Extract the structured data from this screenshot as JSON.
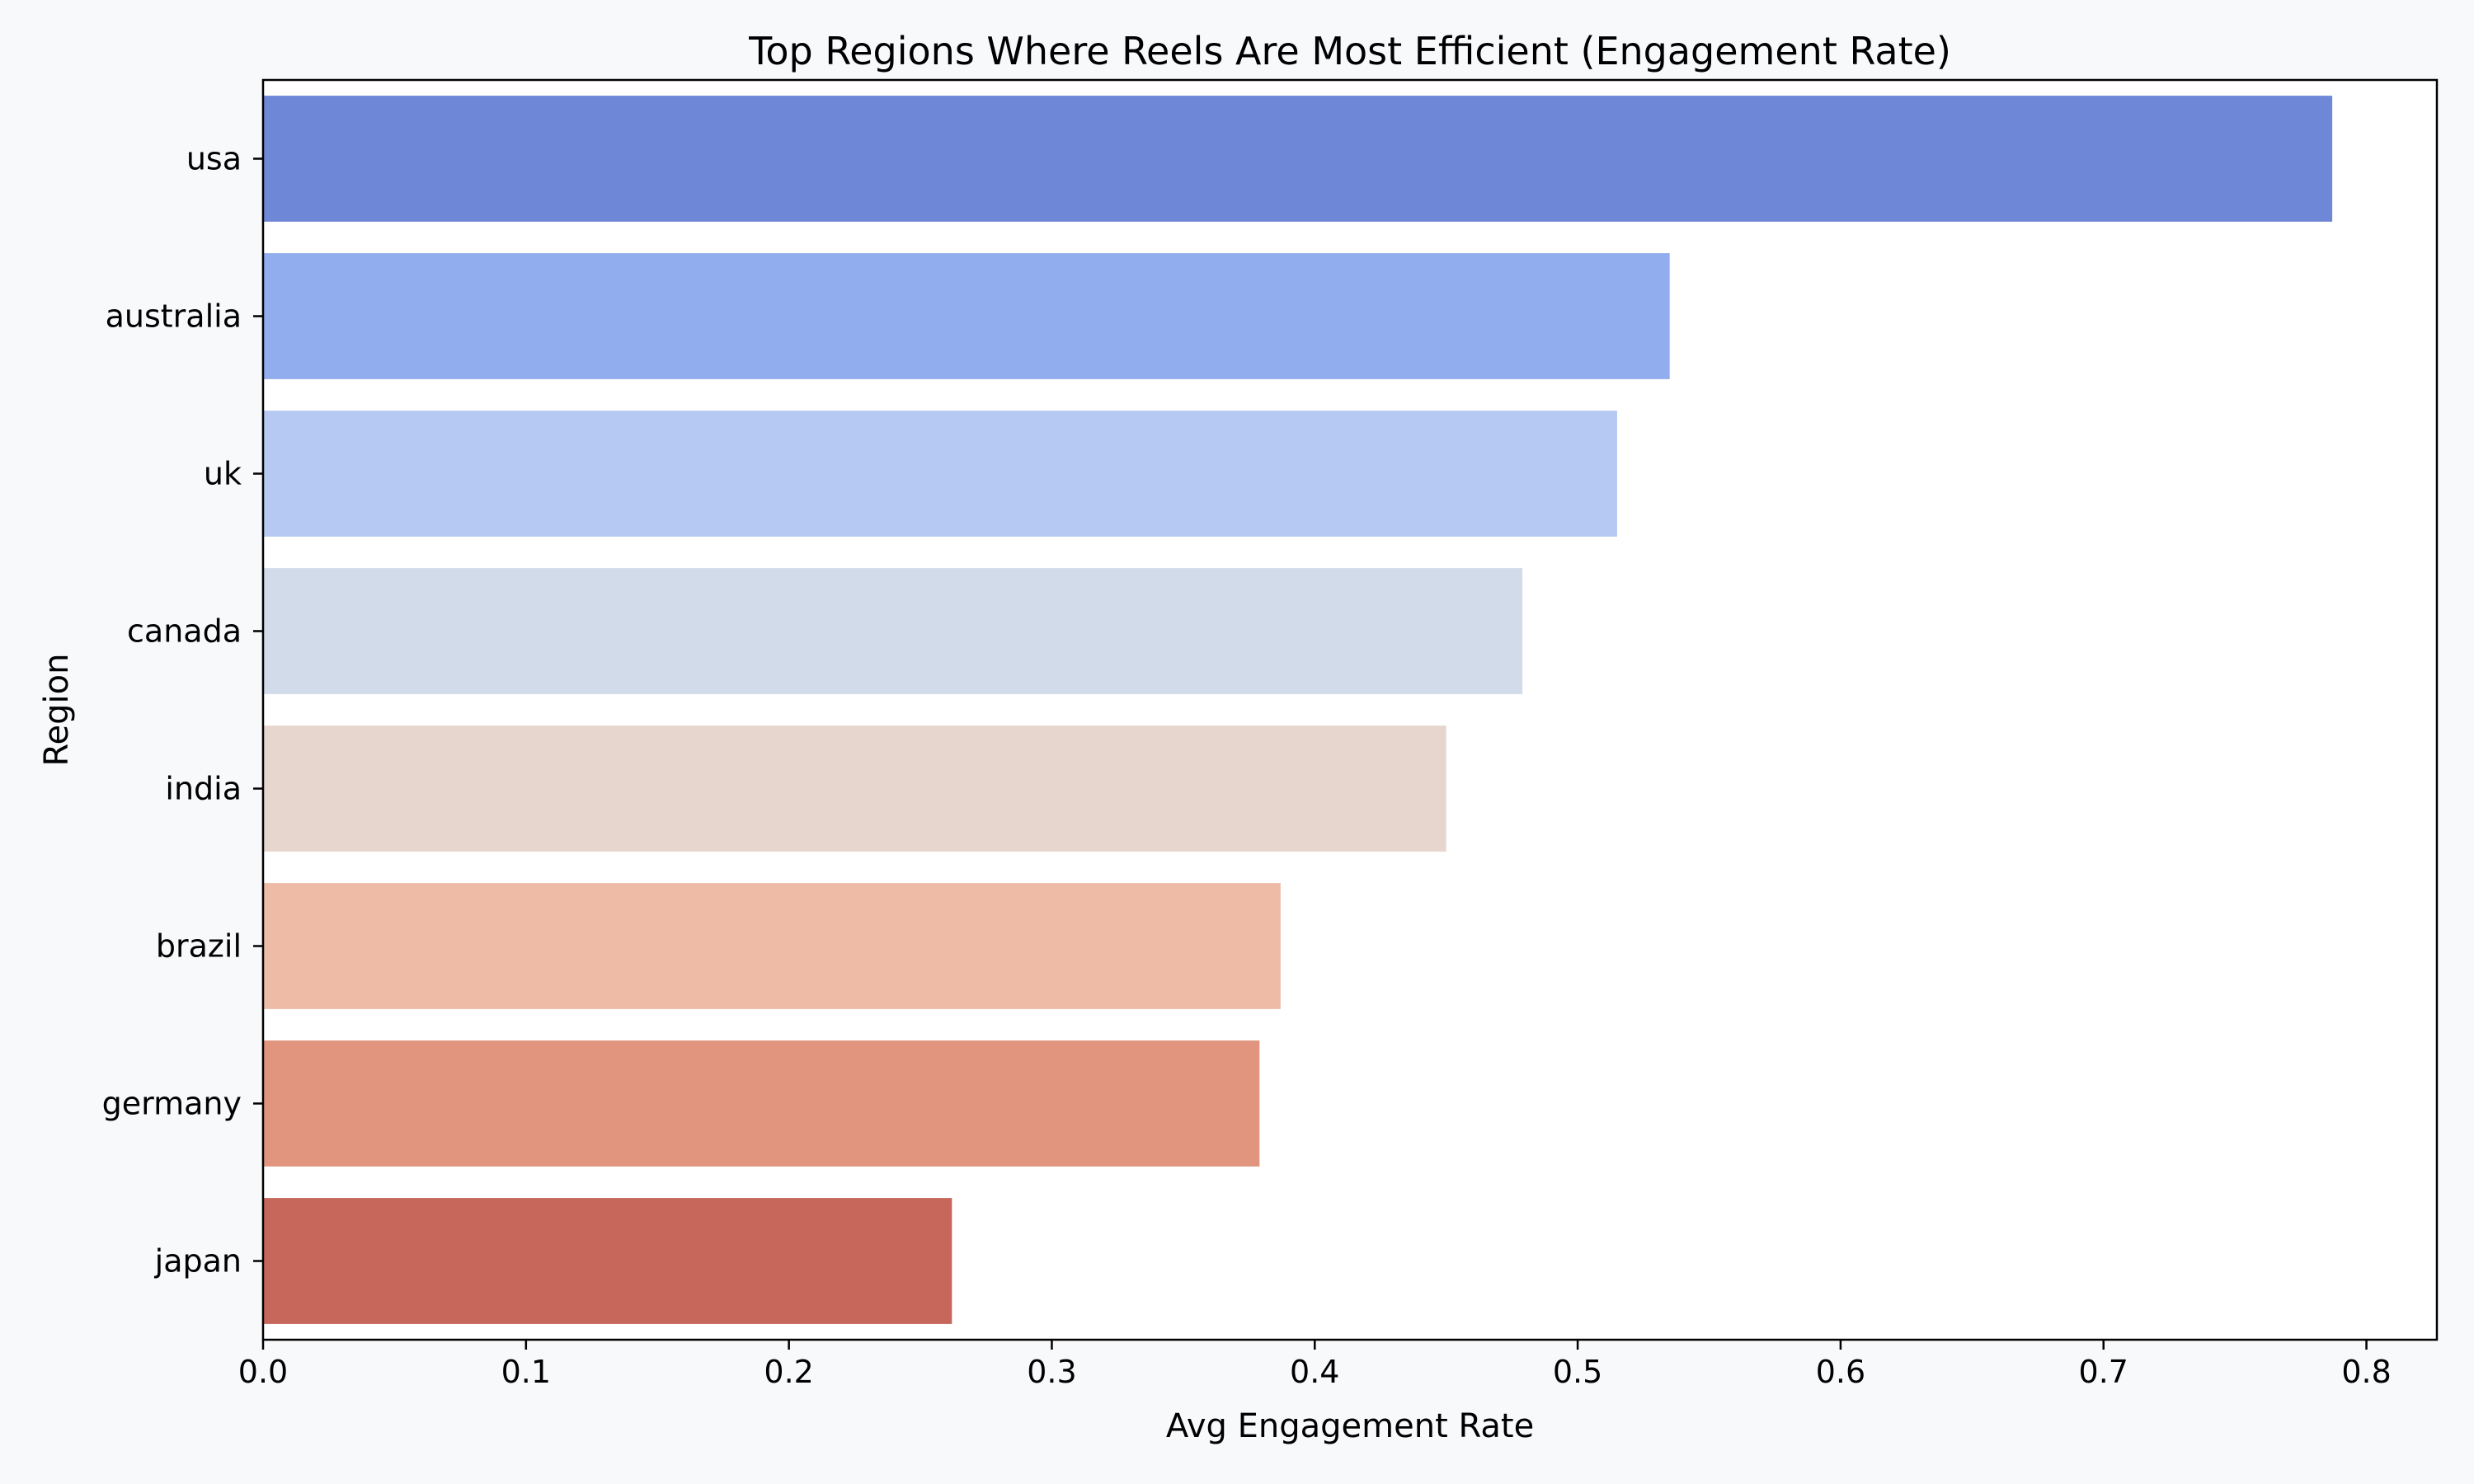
{
  "chart_data": {
    "type": "bar",
    "orientation": "horizontal",
    "title": "Top Regions Where Reels Are Most Efficient (Engagement Rate)",
    "xlabel": "Avg Engagement Rate",
    "ylabel": "Region",
    "categories": [
      "usa",
      "australia",
      "uk",
      "canada",
      "india",
      "brazil",
      "germany",
      "japan"
    ],
    "values": [
      0.787,
      0.535,
      0.515,
      0.479,
      0.45,
      0.387,
      0.379,
      0.262
    ],
    "colors": [
      "#6f87d7",
      "#91adee",
      "#b5c9f2",
      "#d1dbe9",
      "#e6d6cd",
      "#edbba6",
      "#e2957e",
      "#c7675c"
    ],
    "xlim": [
      0,
      0.8268
    ],
    "xticks": [
      0.0,
      0.1,
      0.2,
      0.3,
      0.4,
      0.5,
      0.6,
      0.7,
      0.8
    ],
    "xtick_labels": [
      "0.0",
      "0.1",
      "0.2",
      "0.3",
      "0.4",
      "0.5",
      "0.6",
      "0.7",
      "0.8"
    ],
    "grid": false,
    "legend": false,
    "background": "#f8f9fb",
    "plot_background": "#ffffff"
  }
}
